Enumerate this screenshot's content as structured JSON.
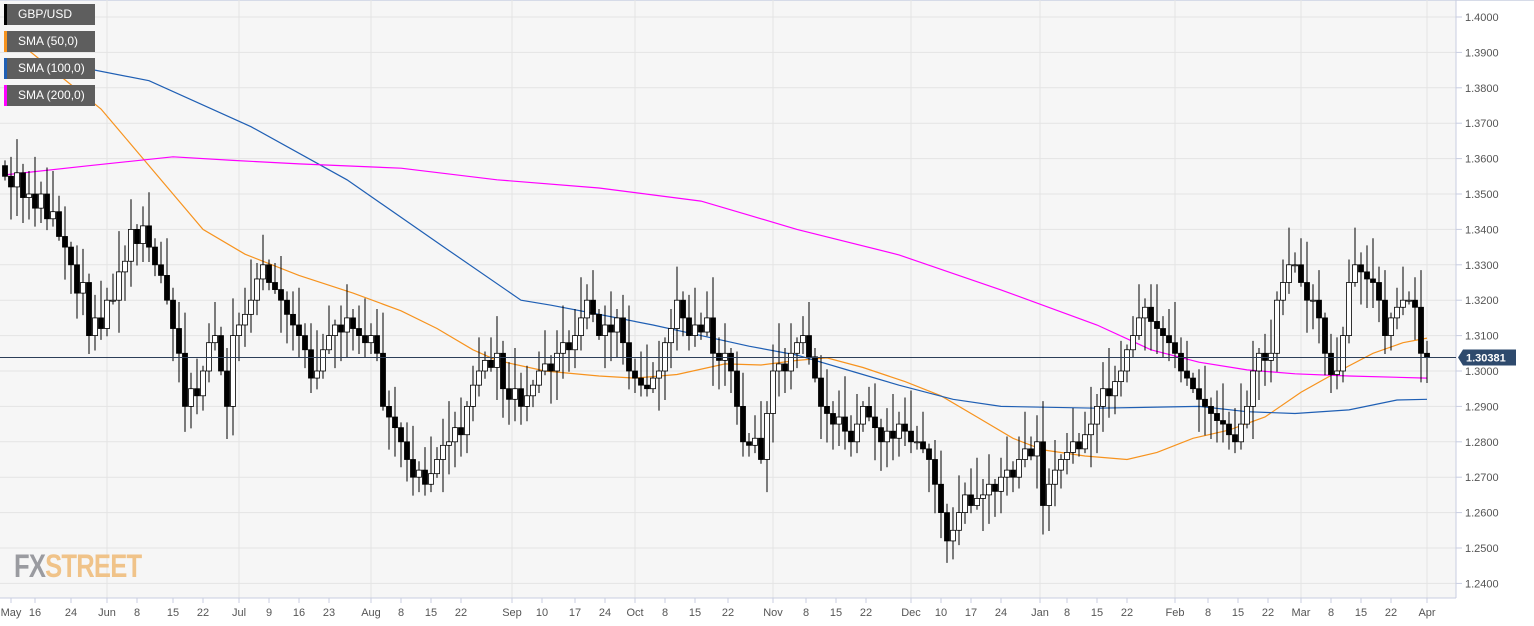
{
  "legend": [
    {
      "label": "GBP/USD",
      "color": "#000000"
    },
    {
      "label": "SMA (50,0)",
      "color": "#f7931e"
    },
    {
      "label": "SMA (100,0)",
      "color": "#1f5fb4"
    },
    {
      "label": "SMA (200,0)",
      "color": "#ff00ff"
    }
  ],
  "watermark": {
    "part1": "FX",
    "part2": "STREET"
  },
  "chart_data": {
    "type": "candlestick",
    "symbol": "GBP/USD",
    "last_price": "1.30381",
    "ylim": [
      1.235,
      1.405
    ],
    "y_ticks": [
      "1.2400",
      "1.2500",
      "1.2600",
      "1.2700",
      "1.2800",
      "1.2900",
      "1.3000",
      "1.3100",
      "1.3200",
      "1.3300",
      "1.3400",
      "1.3500",
      "1.3600",
      "1.3700",
      "1.3800",
      "1.3900",
      "1.4000"
    ],
    "x_ticks": [
      {
        "label": "May",
        "i": 1
      },
      {
        "label": "16",
        "i": 5
      },
      {
        "label": "24",
        "i": 11
      },
      {
        "label": "Jun",
        "i": 17,
        "month": true
      },
      {
        "label": "8",
        "i": 22
      },
      {
        "label": "15",
        "i": 28
      },
      {
        "label": "22",
        "i": 33
      },
      {
        "label": "Jul",
        "i": 39,
        "month": true
      },
      {
        "label": "9",
        "i": 44
      },
      {
        "label": "16",
        "i": 49
      },
      {
        "label": "23",
        "i": 54
      },
      {
        "label": "Aug",
        "i": 61,
        "month": true
      },
      {
        "label": "8",
        "i": 66
      },
      {
        "label": "15",
        "i": 71
      },
      {
        "label": "22",
        "i": 76
      },
      {
        "label": "Sep",
        "i": 84.5,
        "month": true
      },
      {
        "label": "10",
        "i": 89.5
      },
      {
        "label": "17",
        "i": 95
      },
      {
        "label": "24",
        "i": 100
      },
      {
        "label": "Oct",
        "i": 105,
        "month": true
      },
      {
        "label": "8",
        "i": 110
      },
      {
        "label": "15",
        "i": 115
      },
      {
        "label": "22",
        "i": 120.5
      },
      {
        "label": "Nov",
        "i": 128,
        "month": true
      },
      {
        "label": "8",
        "i": 133.5
      },
      {
        "label": "15",
        "i": 138.5
      },
      {
        "label": "22",
        "i": 143.5
      },
      {
        "label": "Dec",
        "i": 151,
        "month": true
      },
      {
        "label": "10",
        "i": 156
      },
      {
        "label": "17",
        "i": 161
      },
      {
        "label": "24",
        "i": 166
      },
      {
        "label": "Jan",
        "i": 172.5,
        "month": true
      },
      {
        "label": "8",
        "i": 177
      },
      {
        "label": "15",
        "i": 182
      },
      {
        "label": "22",
        "i": 187
      },
      {
        "label": "Feb",
        "i": 195,
        "month": true
      },
      {
        "label": "8",
        "i": 200.5
      },
      {
        "label": "15",
        "i": 205.5
      },
      {
        "label": "22",
        "i": 210.5
      },
      {
        "label": "Mar",
        "i": 216,
        "month": true
      },
      {
        "label": "8",
        "i": 221
      },
      {
        "label": "15",
        "i": 226
      },
      {
        "label": "22",
        "i": 231
      },
      {
        "label": "Apr",
        "i": 237,
        "month": true
      }
    ],
    "first_open": 1.358,
    "close": [
      1.355,
      1.352,
      1.356,
      1.349,
      1.35,
      1.346,
      1.35,
      1.343,
      1.345,
      1.338,
      1.335,
      1.33,
      1.322,
      1.325,
      1.31,
      1.315,
      1.312,
      1.32,
      1.32,
      1.328,
      1.331,
      1.34,
      1.336,
      1.341,
      1.335,
      1.33,
      1.327,
      1.32,
      1.312,
      1.305,
      1.29,
      1.295,
      1.293,
      1.3,
      1.308,
      1.31,
      1.3,
      1.29,
      1.31,
      1.313,
      1.316,
      1.32,
      1.326,
      1.33,
      1.325,
      1.323,
      1.32,
      1.316,
      1.313,
      1.31,
      1.306,
      1.298,
      1.3,
      1.306,
      1.31,
      1.313,
      1.311,
      1.315,
      1.312,
      1.31,
      1.308,
      1.31,
      1.305,
      1.29,
      1.287,
      1.284,
      1.28,
      1.275,
      1.27,
      1.272,
      1.268,
      1.271,
      1.275,
      1.279,
      1.28,
      1.284,
      1.282,
      1.29,
      1.296,
      1.3,
      1.303,
      1.301,
      1.305,
      1.295,
      1.292,
      1.295,
      1.29,
      1.293,
      1.296,
      1.3,
      1.302,
      1.3,
      1.305,
      1.308,
      1.306,
      1.31,
      1.315,
      1.32,
      1.316,
      1.31,
      1.313,
      1.311,
      1.315,
      1.308,
      1.3,
      1.298,
      1.296,
      1.295,
      1.298,
      1.3,
      1.308,
      1.312,
      1.32,
      1.315,
      1.31,
      1.313,
      1.311,
      1.315,
      1.305,
      1.303,
      1.305,
      1.3,
      1.29,
      1.28,
      1.279,
      1.281,
      1.275,
      1.288,
      1.3,
      1.302,
      1.3,
      1.305,
      1.308,
      1.31,
      1.304,
      1.298,
      1.29,
      1.288,
      1.285,
      1.287,
      1.283,
      1.28,
      1.285,
      1.29,
      1.287,
      1.284,
      1.28,
      1.283,
      1.281,
      1.285,
      1.283,
      1.28,
      1.28,
      1.278,
      1.275,
      1.268,
      1.26,
      1.252,
      1.255,
      1.26,
      1.265,
      1.262,
      1.264,
      1.265,
      1.268,
      1.266,
      1.27,
      1.272,
      1.27,
      1.275,
      1.278,
      1.276,
      1.28,
      1.262,
      1.268,
      1.272,
      1.275,
      1.277,
      1.28,
      1.278,
      1.282,
      1.285,
      1.29,
      1.295,
      1.293,
      1.297,
      1.3,
      1.306,
      1.31,
      1.315,
      1.318,
      1.314,
      1.312,
      1.31,
      1.308,
      1.305,
      1.3,
      1.298,
      1.295,
      1.292,
      1.29,
      1.288,
      1.286,
      1.285,
      1.282,
      1.28,
      1.285,
      1.29,
      1.3,
      1.305,
      1.303,
      1.305,
      1.32,
      1.325,
      1.33,
      1.33,
      1.325,
      1.32,
      1.32,
      1.315,
      1.305,
      1.299,
      1.3,
      1.31,
      1.325,
      1.33,
      1.328,
      1.326,
      1.325,
      1.32,
      1.31,
      1.315,
      1.318,
      1.32,
      1.32,
      1.318,
      1.305,
      1.3038
    ],
    "series": [
      {
        "name": "SMA (50,0)",
        "color": "#f7931e",
        "points": [
          [
            0,
            1.396
          ],
          [
            8,
            1.385
          ],
          [
            16,
            1.374
          ],
          [
            22,
            1.362
          ],
          [
            28,
            1.35
          ],
          [
            33,
            1.34
          ],
          [
            40,
            1.333
          ],
          [
            49,
            1.327
          ],
          [
            58,
            1.322
          ],
          [
            66,
            1.317
          ],
          [
            72,
            1.312
          ],
          [
            78,
            1.306
          ],
          [
            82,
            1.303
          ],
          [
            90,
            1.3
          ],
          [
            99,
            1.2986
          ],
          [
            105,
            1.298
          ],
          [
            112,
            1.299
          ],
          [
            120,
            1.302
          ],
          [
            126,
            1.3017
          ],
          [
            132,
            1.303
          ],
          [
            137,
            1.3037
          ],
          [
            143,
            1.301
          ],
          [
            150,
            1.297
          ],
          [
            156,
            1.293
          ],
          [
            162,
            1.287
          ],
          [
            168,
            1.281
          ],
          [
            173,
            1.2777
          ],
          [
            180,
            1.276
          ],
          [
            187,
            1.275
          ],
          [
            192,
            1.277
          ],
          [
            198,
            1.281
          ],
          [
            204,
            1.2833
          ],
          [
            210,
            1.287
          ],
          [
            216,
            1.294
          ],
          [
            222,
            1.2997
          ],
          [
            228,
            1.305
          ],
          [
            233,
            1.308
          ],
          [
            237,
            1.3093
          ]
        ]
      },
      {
        "name": "SMA (100,0)",
        "color": "#1f5fb4",
        "points": [
          [
            0,
            1.3873
          ],
          [
            12,
            1.386
          ],
          [
            24,
            1.382
          ],
          [
            41,
            1.369
          ],
          [
            57,
            1.354
          ],
          [
            74,
            1.334
          ],
          [
            86,
            1.32
          ],
          [
            91,
            1.3186
          ],
          [
            99,
            1.316
          ],
          [
            108,
            1.313
          ],
          [
            116,
            1.31
          ],
          [
            124,
            1.307
          ],
          [
            132,
            1.3045
          ],
          [
            141,
            1.3
          ],
          [
            149,
            1.296
          ],
          [
            158,
            1.292
          ],
          [
            166,
            1.29
          ],
          [
            182,
            1.2895
          ],
          [
            199,
            1.29
          ],
          [
            207,
            1.2885
          ],
          [
            215,
            1.288
          ],
          [
            224,
            1.289
          ],
          [
            232,
            1.2918
          ],
          [
            237,
            1.292
          ]
        ]
      },
      {
        "name": "SMA (200,0)",
        "color": "#ff00ff",
        "points": [
          [
            0,
            1.3554
          ],
          [
            14,
            1.358
          ],
          [
            28,
            1.3605
          ],
          [
            38,
            1.3595
          ],
          [
            49,
            1.3585
          ],
          [
            66,
            1.3573
          ],
          [
            82,
            1.354
          ],
          [
            99,
            1.3517
          ],
          [
            116,
            1.348
          ],
          [
            124,
            1.344
          ],
          [
            132,
            1.34
          ],
          [
            149,
            1.3328
          ],
          [
            166,
            1.3229
          ],
          [
            182,
            1.313
          ],
          [
            191,
            1.306
          ],
          [
            199,
            1.3025
          ],
          [
            207,
            1.3003
          ],
          [
            215,
            1.2992
          ],
          [
            224,
            1.2986
          ],
          [
            237,
            1.298
          ]
        ]
      }
    ]
  }
}
